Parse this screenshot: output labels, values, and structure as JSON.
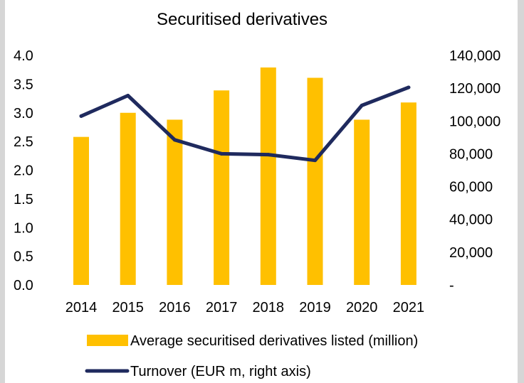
{
  "chart_data": {
    "type": "bar+line",
    "title": "Securitised derivatives",
    "categories": [
      "2014",
      "2015",
      "2016",
      "2017",
      "2018",
      "2019",
      "2020",
      "2021"
    ],
    "series": [
      {
        "name": "Average securitised derivatives listed (million)",
        "type": "bar",
        "axis": "left",
        "values": [
          2.58,
          3.0,
          2.88,
          3.39,
          3.79,
          3.61,
          2.88,
          3.18
        ]
      },
      {
        "name": "Turnover (EUR m, right axis)",
        "type": "line",
        "axis": "right",
        "values": [
          103000,
          115500,
          88500,
          80000,
          79500,
          76000,
          109500,
          120500
        ]
      }
    ],
    "y_left": {
      "min": 0,
      "max": 4,
      "ticks": [
        0,
        0.5,
        1,
        1.5,
        2,
        2.5,
        3,
        3.5,
        4
      ],
      "tick_labels": [
        "0.0",
        "0.5",
        "1.0",
        "1.5",
        "2.0",
        "2.5",
        "3.0",
        "3.5",
        "4.0"
      ]
    },
    "y_right": {
      "min": 0,
      "max": 140000,
      "ticks": [
        0,
        20000,
        40000,
        60000,
        80000,
        100000,
        120000,
        140000
      ],
      "tick_labels": [
        "-",
        "20,000",
        "40,000",
        "60,000",
        "80,000",
        "100,000",
        "120,000",
        "140,000"
      ]
    },
    "grid": false,
    "legend_position": "bottom",
    "colors": {
      "bar": "#FFC000",
      "line": "#1F2A5E",
      "text": "#000000"
    }
  }
}
